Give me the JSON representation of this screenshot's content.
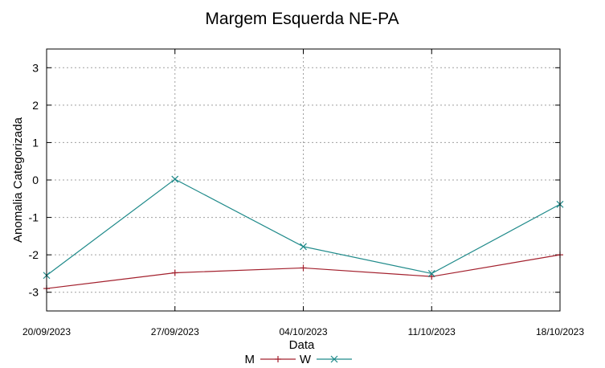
{
  "chart_data": {
    "type": "line",
    "title": "Margem Esquerda NE-PA",
    "xlabel": "Data",
    "ylabel": "Anomalia Categorizada",
    "categories": [
      "20/09/2023",
      "27/09/2023",
      "04/10/2023",
      "11/10/2023",
      "18/10/2023"
    ],
    "yticks": [
      "3",
      "2",
      "1",
      "0",
      "-1",
      "-2",
      "-3"
    ],
    "ylim": [
      -3.5,
      3.5
    ],
    "grid": true,
    "legend_position": "bottom-center",
    "series": [
      {
        "name": "M",
        "color": "#a3202d",
        "marker": "plus",
        "values": [
          -2.9,
          -2.48,
          -2.35,
          -2.58,
          -2.0
        ]
      },
      {
        "name": "W",
        "color": "#1f8a8a",
        "marker": "cross",
        "values": [
          -2.55,
          0.02,
          -1.78,
          -2.5,
          -0.65
        ]
      }
    ]
  }
}
